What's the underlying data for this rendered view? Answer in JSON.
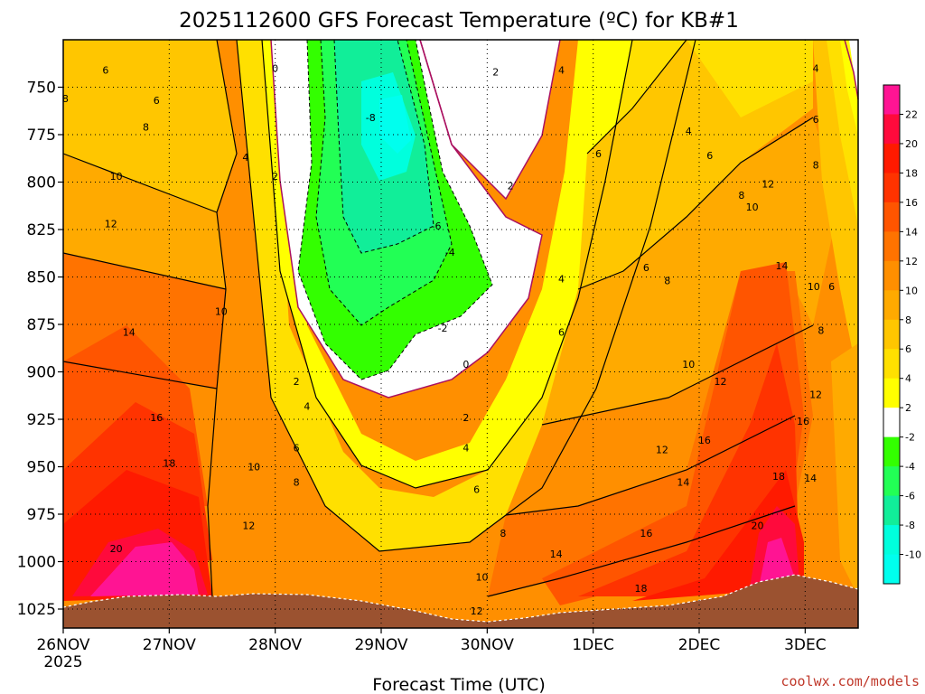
{
  "chart_data": {
    "type": "heatmap",
    "title": "2025112600 GFS Forecast Temperature (ºC) for KB#1",
    "xlabel": "Forecast Time (UTC)",
    "ylabel": "",
    "credit": "coolwx.com/models",
    "x_ticks": [
      "26NOV",
      "27NOV",
      "28NOV",
      "29NOV",
      "30NOV",
      "1DEC",
      "2DEC",
      "3DEC"
    ],
    "x_year_label": "2025",
    "x_range_days": [
      0,
      7.5
    ],
    "y_ticks": [
      750,
      775,
      800,
      825,
      850,
      875,
      900,
      925,
      950,
      975,
      1000,
      1025
    ],
    "y_range_hpa": [
      725,
      1035
    ],
    "y_reversed": true,
    "grid": true,
    "colorbar": {
      "ticks": [
        22,
        20,
        18,
        16,
        14,
        12,
        10,
        8,
        6,
        4,
        2,
        -2,
        -4,
        -6,
        -8,
        -10
      ],
      "colors": [
        "#ff1493",
        "#ff0a3c",
        "#ff1a00",
        "#ff3300",
        "#ff5500",
        "#ff7300",
        "#ff8f00",
        "#ffaa00",
        "#ffc600",
        "#ffe000",
        "#ffff00",
        "#ffffff",
        "#33ff00",
        "#22ff55",
        "#11ee99",
        "#00ffdd",
        "#00ffee"
      ]
    },
    "contour_labels": [
      {
        "t": 0.02,
        "p": 756,
        "v": "8"
      },
      {
        "t": 0.4,
        "p": 741,
        "v": "6"
      },
      {
        "t": 0.5,
        "p": 797,
        "v": "10"
      },
      {
        "t": 0.78,
        "p": 771,
        "v": "8"
      },
      {
        "t": 0.88,
        "p": 757,
        "v": "6"
      },
      {
        "t": 1.72,
        "p": 787,
        "v": "4"
      },
      {
        "t": 2.0,
        "p": 797,
        "v": "2"
      },
      {
        "t": 2.0,
        "p": 740,
        "v": "0"
      },
      {
        "t": 2.9,
        "p": 766,
        "v": "-8"
      },
      {
        "t": 3.52,
        "p": 823,
        "v": "-6"
      },
      {
        "t": 3.65,
        "p": 837,
        "v": "-4"
      },
      {
        "t": 3.58,
        "p": 877,
        "v": "-2"
      },
      {
        "t": 3.8,
        "p": 896,
        "v": "0"
      },
      {
        "t": 3.8,
        "p": 924,
        "v": "2"
      },
      {
        "t": 4.08,
        "p": 742,
        "v": "2"
      },
      {
        "t": 4.22,
        "p": 802,
        "v": "2"
      },
      {
        "t": 4.7,
        "p": 741,
        "v": "4"
      },
      {
        "t": 5.05,
        "p": 785,
        "v": "6"
      },
      {
        "t": 5.9,
        "p": 773,
        "v": "4"
      },
      {
        "t": 6.1,
        "p": 786,
        "v": "6"
      },
      {
        "t": 6.4,
        "p": 807,
        "v": "8"
      },
      {
        "t": 6.5,
        "p": 813,
        "v": "10"
      },
      {
        "t": 6.65,
        "p": 801,
        "v": "12"
      },
      {
        "t": 6.78,
        "p": 844,
        "v": "14"
      },
      {
        "t": 7.08,
        "p": 855,
        "v": "10"
      },
      {
        "t": 7.25,
        "p": 855,
        "v": "6"
      },
      {
        "t": 7.15,
        "p": 878,
        "v": "8"
      },
      {
        "t": 7.1,
        "p": 912,
        "v": "12"
      },
      {
        "t": 6.98,
        "p": 926,
        "v": "16"
      },
      {
        "t": 6.75,
        "p": 955,
        "v": "18"
      },
      {
        "t": 7.05,
        "p": 956,
        "v": "14"
      },
      {
        "t": 6.55,
        "p": 981,
        "v": "20"
      },
      {
        "t": 7.1,
        "p": 740,
        "v": "4"
      },
      {
        "t": 7.1,
        "p": 767,
        "v": "6"
      },
      {
        "t": 7.1,
        "p": 791,
        "v": "8"
      },
      {
        "t": 0.45,
        "p": 822,
        "v": "12"
      },
      {
        "t": 0.62,
        "p": 879,
        "v": "14"
      },
      {
        "t": 0.88,
        "p": 924,
        "v": "16"
      },
      {
        "t": 1.0,
        "p": 948,
        "v": "18"
      },
      {
        "t": 0.5,
        "p": 993,
        "v": "20"
      },
      {
        "t": 1.49,
        "p": 868,
        "v": "10"
      },
      {
        "t": 1.8,
        "p": 950,
        "v": "10"
      },
      {
        "t": 1.75,
        "p": 981,
        "v": "12"
      },
      {
        "t": 2.2,
        "p": 940,
        "v": "6"
      },
      {
        "t": 2.2,
        "p": 905,
        "v": "2"
      },
      {
        "t": 2.3,
        "p": 918,
        "v": "4"
      },
      {
        "t": 2.2,
        "p": 958,
        "v": "8"
      },
      {
        "t": 3.8,
        "p": 940,
        "v": "4"
      },
      {
        "t": 3.9,
        "p": 962,
        "v": "6"
      },
      {
        "t": 4.15,
        "p": 985,
        "v": "8"
      },
      {
        "t": 3.95,
        "p": 1008,
        "v": "10"
      },
      {
        "t": 3.9,
        "p": 1026,
        "v": "12"
      },
      {
        "t": 4.65,
        "p": 996,
        "v": "14"
      },
      {
        "t": 5.5,
        "p": 985,
        "v": "16"
      },
      {
        "t": 5.45,
        "p": 1014,
        "v": "18"
      },
      {
        "t": 5.65,
        "p": 941,
        "v": "12"
      },
      {
        "t": 5.85,
        "p": 958,
        "v": "14"
      },
      {
        "t": 6.05,
        "p": 936,
        "v": "16"
      },
      {
        "t": 4.7,
        "p": 851,
        "v": "4"
      },
      {
        "t": 4.7,
        "p": 879,
        "v": "6"
      },
      {
        "t": 5.7,
        "p": 852,
        "v": "8"
      },
      {
        "t": 5.9,
        "p": 896,
        "v": "10"
      },
      {
        "t": 6.2,
        "p": 905,
        "v": "12"
      },
      {
        "t": 5.5,
        "p": 845,
        "v": "6"
      }
    ]
  }
}
